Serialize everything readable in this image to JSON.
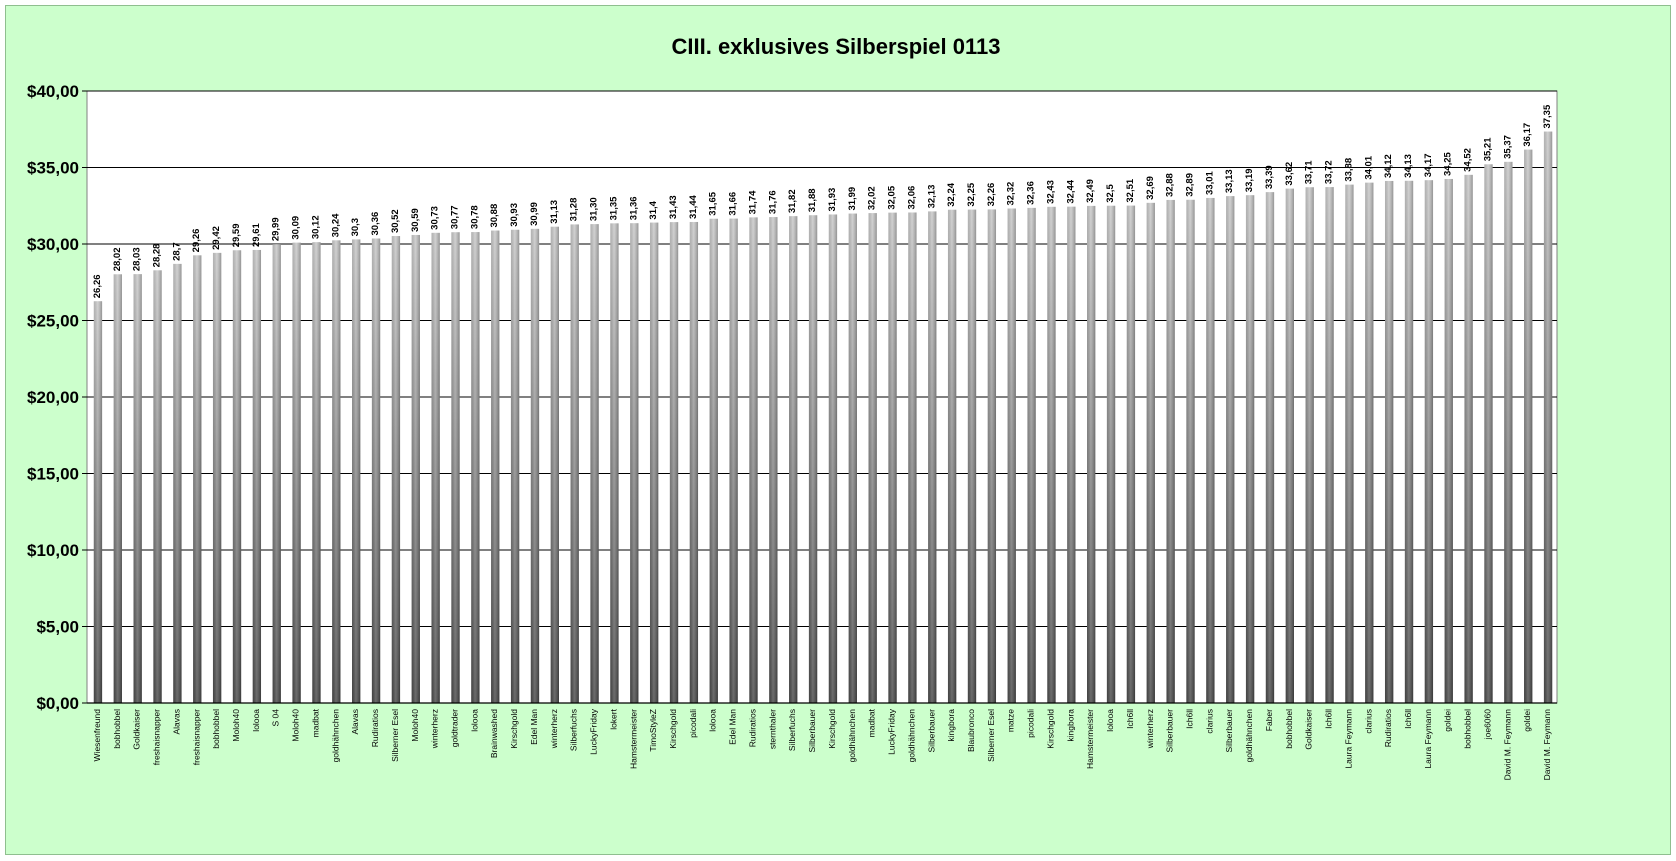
{
  "colors": {
    "background": "#ccffcc",
    "plot_area": "#ffffff",
    "gridline": "#000000",
    "bar_light": "#c8c8c8",
    "bar_dark": "#4a4a4a"
  },
  "chart_data": {
    "type": "bar",
    "title": "CIII. exklusives Silberspiel 0113",
    "xlabel": "",
    "ylabel": "",
    "ylim": [
      0,
      40
    ],
    "ytick_values": [
      0,
      5,
      10,
      15,
      20,
      25,
      30,
      35,
      40
    ],
    "ytick_labels": [
      "$0,00",
      "$5,00",
      "$10,00",
      "$15,00",
      "$20,00",
      "$25,00",
      "$30,00",
      "$35,00",
      "$40,00"
    ],
    "grid": true,
    "legend": "none",
    "categories": [
      "Wiesenfreund",
      "bobhobbel",
      "Goldkaiser",
      "freshaisnapper",
      "Alavas",
      "freshaisnapper",
      "bobhobbel",
      "Moloh40",
      "lolooa",
      "S 04",
      "Moloh40",
      "madbat",
      "goldhähnchen",
      "Alavas",
      "Rudiratios",
      "Silberner Esel",
      "Moloh40",
      "winterherz",
      "goldtrader",
      "lolooa",
      "Brainwashed",
      "Kirschgold",
      "Edel Man",
      "winterherz",
      "Silberfuchs",
      "LuckyFriday",
      "lokert",
      "Hamstermeister",
      "TimoStyleZ",
      "Kirschgold",
      "picodali",
      "lolooa",
      "Edel Man",
      "Rudiratios",
      "sternthaler",
      "Silberfuchs",
      "Silberbauer",
      "Kirschgold",
      "goldhähnchen",
      "madbat",
      "LuckyFriday",
      "goldhähnchen",
      "Silberbauer",
      "kingbora",
      "Blaubronco",
      "Silberner Esel",
      "matze",
      "picodali",
      "Kirschgold",
      "kingbora",
      "Hamstermeister",
      "lolooa",
      "Ich6ll",
      "winterherz",
      "Silberbauer",
      "Ich6ll",
      "clarius",
      "Silberbauer",
      "goldhähnchen",
      "Faber",
      "bobhobbel",
      "Goldkaiser",
      "Ich6ll",
      "Laura Feymann",
      "clarius",
      "Rudiratios",
      "Ich6ll",
      "Laura Feymann",
      "goldei",
      "bobhobbel",
      "joe6060",
      "David M. Feymann",
      "goldei",
      "David M. Feymann"
    ],
    "values": [
      26.26,
      28.02,
      28.03,
      28.28,
      28.7,
      29.26,
      29.42,
      29.59,
      29.61,
      29.99,
      30.09,
      30.12,
      30.24,
      30.3,
      30.36,
      30.52,
      30.59,
      30.73,
      30.77,
      30.78,
      30.88,
      30.93,
      30.99,
      31.13,
      31.28,
      31.3,
      31.35,
      31.36,
      31.4,
      31.43,
      31.44,
      31.65,
      31.66,
      31.74,
      31.76,
      31.82,
      31.88,
      31.93,
      31.99,
      32.02,
      32.05,
      32.06,
      32.13,
      32.24,
      32.25,
      32.26,
      32.32,
      32.36,
      32.43,
      32.44,
      32.49,
      32.5,
      32.51,
      32.69,
      32.88,
      32.89,
      33.01,
      33.13,
      33.19,
      33.39,
      33.62,
      33.71,
      33.72,
      33.88,
      34.01,
      34.12,
      34.13,
      34.17,
      34.25,
      34.52,
      35.21,
      35.37,
      36.17,
      37.35
    ],
    "data_labels": [
      "26,26",
      "28,02",
      "28,03",
      "28,28",
      "28,7",
      "29,26",
      "29,42",
      "29,59",
      "29,61",
      "29,99",
      "30,09",
      "30,12",
      "30,24",
      "30,3",
      "30,36",
      "30,52",
      "30,59",
      "30,73",
      "30,77",
      "30,78",
      "30,88",
      "30,93",
      "30,99",
      "31,13",
      "31,28",
      "31,30",
      "31,35",
      "31,36",
      "31,4",
      "31,43",
      "31,44",
      "31,65",
      "31,66",
      "31,74",
      "31,76",
      "31,82",
      "31,88",
      "31,93",
      "31,99",
      "32,02",
      "32,05",
      "32,06",
      "32,13",
      "32,24",
      "32,25",
      "32,26",
      "32,32",
      "32,36",
      "32,43",
      "32,44",
      "32,49",
      "32,5",
      "32,51",
      "32,69",
      "32,88",
      "32,89",
      "33,01",
      "33,13",
      "33,19",
      "33,39",
      "33,62",
      "33,71",
      "33,72",
      "33,88",
      "34,01",
      "34,12",
      "34,13",
      "34,17",
      "34,25",
      "34,52",
      "35,21",
      "35,37",
      "36,17",
      "37,35"
    ]
  }
}
